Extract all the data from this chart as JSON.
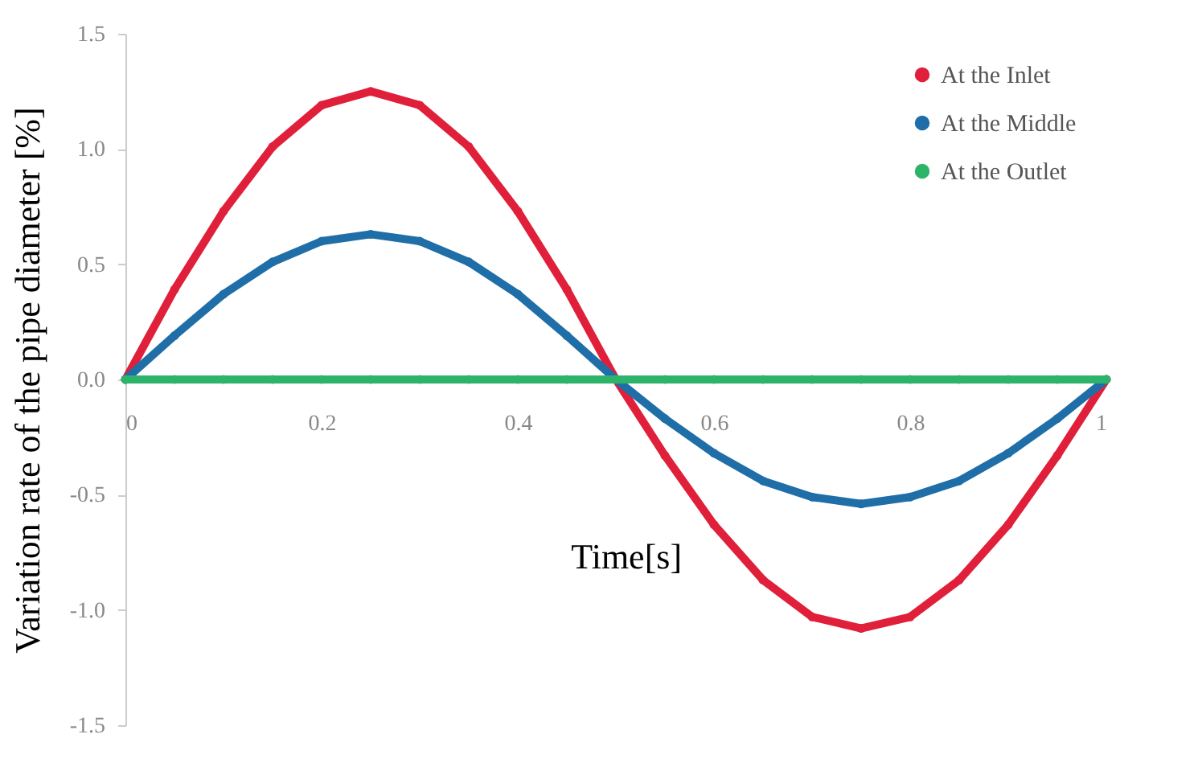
{
  "chart_data": {
    "type": "line",
    "xlabel": "Time[s]",
    "ylabel": "Variation rate of the pipe diameter [%]",
    "x": [
      0,
      0.05,
      0.1,
      0.15,
      0.2,
      0.25,
      0.3,
      0.35,
      0.4,
      0.45,
      0.5,
      0.55,
      0.6,
      0.65,
      0.7,
      0.75,
      0.8,
      0.85,
      0.9,
      0.95,
      1
    ],
    "series": [
      {
        "name": "At the Inlet",
        "color": "#e0203a",
        "values": [
          0,
          0.39,
          0.73,
          1.01,
          1.19,
          1.25,
          1.19,
          1.01,
          0.73,
          0.39,
          0,
          -0.33,
          -0.63,
          -0.87,
          -1.03,
          -1.08,
          -1.03,
          -0.87,
          -0.63,
          -0.33,
          0
        ]
      },
      {
        "name": "At the Middle",
        "color": "#1f6ea8",
        "values": [
          0,
          0.19,
          0.37,
          0.51,
          0.6,
          0.63,
          0.6,
          0.51,
          0.37,
          0.19,
          0,
          -0.17,
          -0.32,
          -0.44,
          -0.51,
          -0.54,
          -0.51,
          -0.44,
          -0.32,
          -0.17,
          0
        ]
      },
      {
        "name": "At the Outlet",
        "color": "#2db36a",
        "values": [
          0,
          0,
          0,
          0,
          0,
          0,
          0,
          0,
          0,
          0,
          0,
          0,
          0,
          0,
          0,
          0,
          0,
          0,
          0,
          0,
          0
        ]
      }
    ],
    "xlim": [
      0,
      1
    ],
    "xticks": [
      0,
      0.2,
      0.4,
      0.6,
      0.8,
      1
    ],
    "ylim": [
      -1.5,
      1.5
    ],
    "yticks": [
      {
        "value": -1.5,
        "label": "-1.5"
      },
      {
        "value": -1,
        "label": "-1.0"
      },
      {
        "value": -0.5,
        "label": "-0.5"
      },
      {
        "value": 0,
        "label": "0.0"
      },
      {
        "value": 0.5,
        "label": "0.5"
      },
      {
        "value": 1,
        "label": "1.0"
      },
      {
        "value": 1.5,
        "label": "1.5"
      }
    ],
    "grid": false,
    "legend": "top right",
    "marker": "circle",
    "line_style": "solid"
  }
}
